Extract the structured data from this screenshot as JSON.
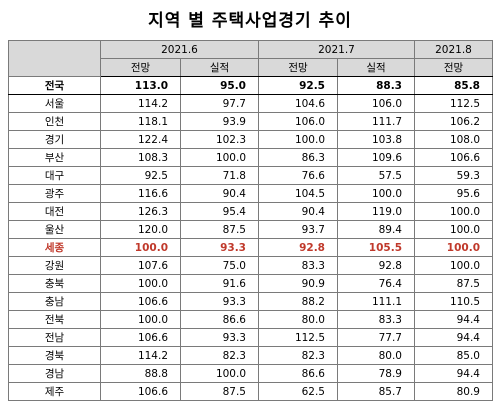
{
  "title": "지역 별 주택사업경기 추이",
  "periods": [
    "2021.6",
    "2021.7",
    "2021.8"
  ],
  "subheaders": [
    "전망",
    "실적",
    "전망",
    "실적",
    "전망"
  ],
  "rows": [
    {
      "region": "전국",
      "values": [
        "113.0",
        "95.0",
        "92.5",
        "88.3",
        "85.8"
      ],
      "style": "bold"
    },
    {
      "region": "서울",
      "values": [
        "114.2",
        "97.7",
        "104.6",
        "106.0",
        "112.5"
      ],
      "style": ""
    },
    {
      "region": "인천",
      "values": [
        "118.1",
        "93.9",
        "106.0",
        "111.7",
        "106.2"
      ],
      "style": ""
    },
    {
      "region": "경기",
      "values": [
        "122.4",
        "102.3",
        "100.0",
        "103.8",
        "108.0"
      ],
      "style": ""
    },
    {
      "region": "부산",
      "values": [
        "108.3",
        "100.0",
        "86.3",
        "109.6",
        "106.6"
      ],
      "style": ""
    },
    {
      "region": "대구",
      "values": [
        "92.5",
        "71.8",
        "76.6",
        "57.5",
        "59.3"
      ],
      "style": ""
    },
    {
      "region": "광주",
      "values": [
        "116.6",
        "90.4",
        "104.5",
        "100.0",
        "95.6"
      ],
      "style": ""
    },
    {
      "region": "대전",
      "values": [
        "126.3",
        "95.4",
        "90.4",
        "119.0",
        "100.0"
      ],
      "style": ""
    },
    {
      "region": "울산",
      "values": [
        "120.0",
        "87.5",
        "93.7",
        "89.4",
        "100.0"
      ],
      "style": ""
    },
    {
      "region": "세종",
      "values": [
        "100.0",
        "93.3",
        "92.8",
        "105.5",
        "100.0"
      ],
      "style": "red"
    },
    {
      "region": "강원",
      "values": [
        "107.6",
        "75.0",
        "83.3",
        "92.8",
        "100.0"
      ],
      "style": ""
    },
    {
      "region": "충북",
      "values": [
        "100.0",
        "91.6",
        "90.9",
        "76.4",
        "87.5"
      ],
      "style": ""
    },
    {
      "region": "충남",
      "values": [
        "106.6",
        "93.3",
        "88.2",
        "111.1",
        "110.5"
      ],
      "style": ""
    },
    {
      "region": "전북",
      "values": [
        "100.0",
        "86.6",
        "80.0",
        "83.3",
        "94.4"
      ],
      "style": ""
    },
    {
      "region": "전남",
      "values": [
        "106.6",
        "93.3",
        "112.5",
        "77.7",
        "94.4"
      ],
      "style": ""
    },
    {
      "region": "경북",
      "values": [
        "114.2",
        "82.3",
        "82.3",
        "80.0",
        "85.0"
      ],
      "style": ""
    },
    {
      "region": "경남",
      "values": [
        "88.8",
        "100.0",
        "86.6",
        "78.9",
        "94.4"
      ],
      "style": ""
    },
    {
      "region": "제주",
      "values": [
        "106.6",
        "87.5",
        "62.5",
        "85.7",
        "80.9"
      ],
      "style": ""
    }
  ]
}
